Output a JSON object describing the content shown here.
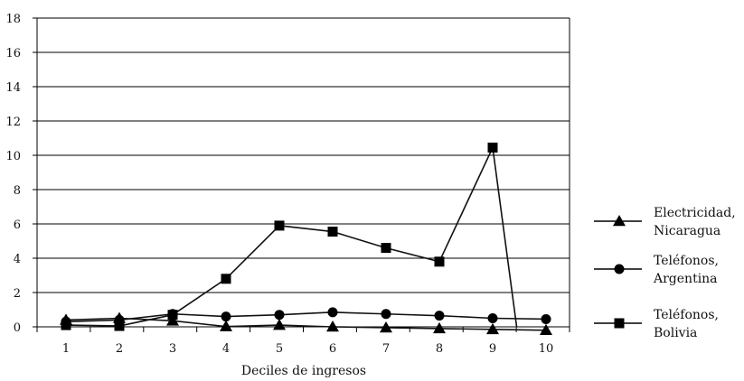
{
  "chart_data": {
    "type": "line",
    "xlabel": "Deciles de ingresos",
    "ylabel": "",
    "categories": [
      "1",
      "2",
      "3",
      "4",
      "5",
      "6",
      "7",
      "8",
      "9",
      "10"
    ],
    "ylim": [
      0,
      18
    ],
    "yticks": [
      0,
      2,
      4,
      6,
      8,
      10,
      12,
      14,
      16,
      18
    ],
    "grid": "horizontal",
    "legend_position": "right",
    "series": [
      {
        "name_lines": [
          "Electricidad,",
          "Nicaragua"
        ],
        "marker": "triangle",
        "x": [
          1,
          2,
          3,
          4,
          5,
          6,
          7,
          8,
          9,
          10
        ],
        "values": [
          0.4,
          0.5,
          0.35,
          0.02,
          0.1,
          0.0,
          -0.05,
          -0.1,
          -0.15,
          -0.2
        ]
      },
      {
        "name_lines": [
          "Teléfonos,",
          "Argentina"
        ],
        "marker": "circle",
        "x": [
          1,
          2,
          3,
          4,
          5,
          6,
          7,
          8,
          9,
          10
        ],
        "values": [
          0.3,
          0.4,
          0.75,
          0.6,
          0.7,
          0.85,
          0.75,
          0.65,
          0.5,
          0.45
        ]
      },
      {
        "name_lines": [
          "Teléfonos,",
          "Bolivia"
        ],
        "marker": "square",
        "x": [
          1,
          2,
          3,
          4,
          5,
          6,
          7,
          8,
          9,
          9.45
        ],
        "values": [
          0.1,
          0.05,
          0.7,
          2.8,
          5.9,
          5.55,
          4.6,
          3.8,
          10.45,
          0.0
        ],
        "marker_mask": [
          true,
          true,
          true,
          true,
          true,
          true,
          true,
          true,
          true,
          false
        ]
      }
    ]
  }
}
